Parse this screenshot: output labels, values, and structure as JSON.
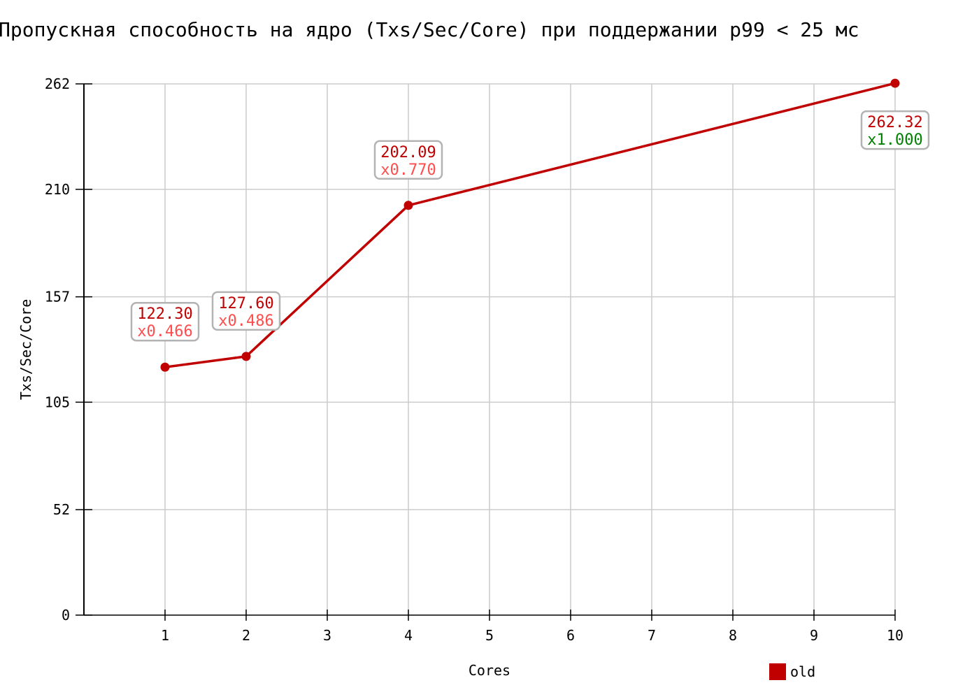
{
  "chart_data": {
    "type": "line",
    "title": "Пропускная способность на ядро (Txs/Sec/Core) при поддержании p99 < 25 мс",
    "xlabel": "Cores",
    "ylabel": "Txs/Sec/Core",
    "xlim": [
      0,
      10
    ],
    "ylim": [
      0,
      262
    ],
    "x_ticks": [
      1,
      2,
      3,
      4,
      5,
      6,
      7,
      8,
      9,
      10
    ],
    "y_ticks": [
      0,
      52,
      105,
      157,
      210,
      262
    ],
    "y_tick_labels": [
      "0",
      "52",
      "105",
      "157",
      "210",
      "262"
    ],
    "grid": true,
    "legend_position": "bottom-right",
    "series": [
      {
        "name": "old",
        "color": "#c00000",
        "x": [
          1,
          2,
          4,
          10
        ],
        "y": [
          122.3,
          127.6,
          202.09,
          262.32
        ],
        "value_labels": [
          "122.30",
          "127.60",
          "202.09",
          "262.32"
        ],
        "ratio_labels": [
          "x0.466",
          "x0.486",
          "x0.770",
          "x1.000"
        ],
        "ratio_colors": [
          "#ff4d4d",
          "#ff4d4d",
          "#ff4d4d",
          "#008000"
        ]
      }
    ]
  }
}
